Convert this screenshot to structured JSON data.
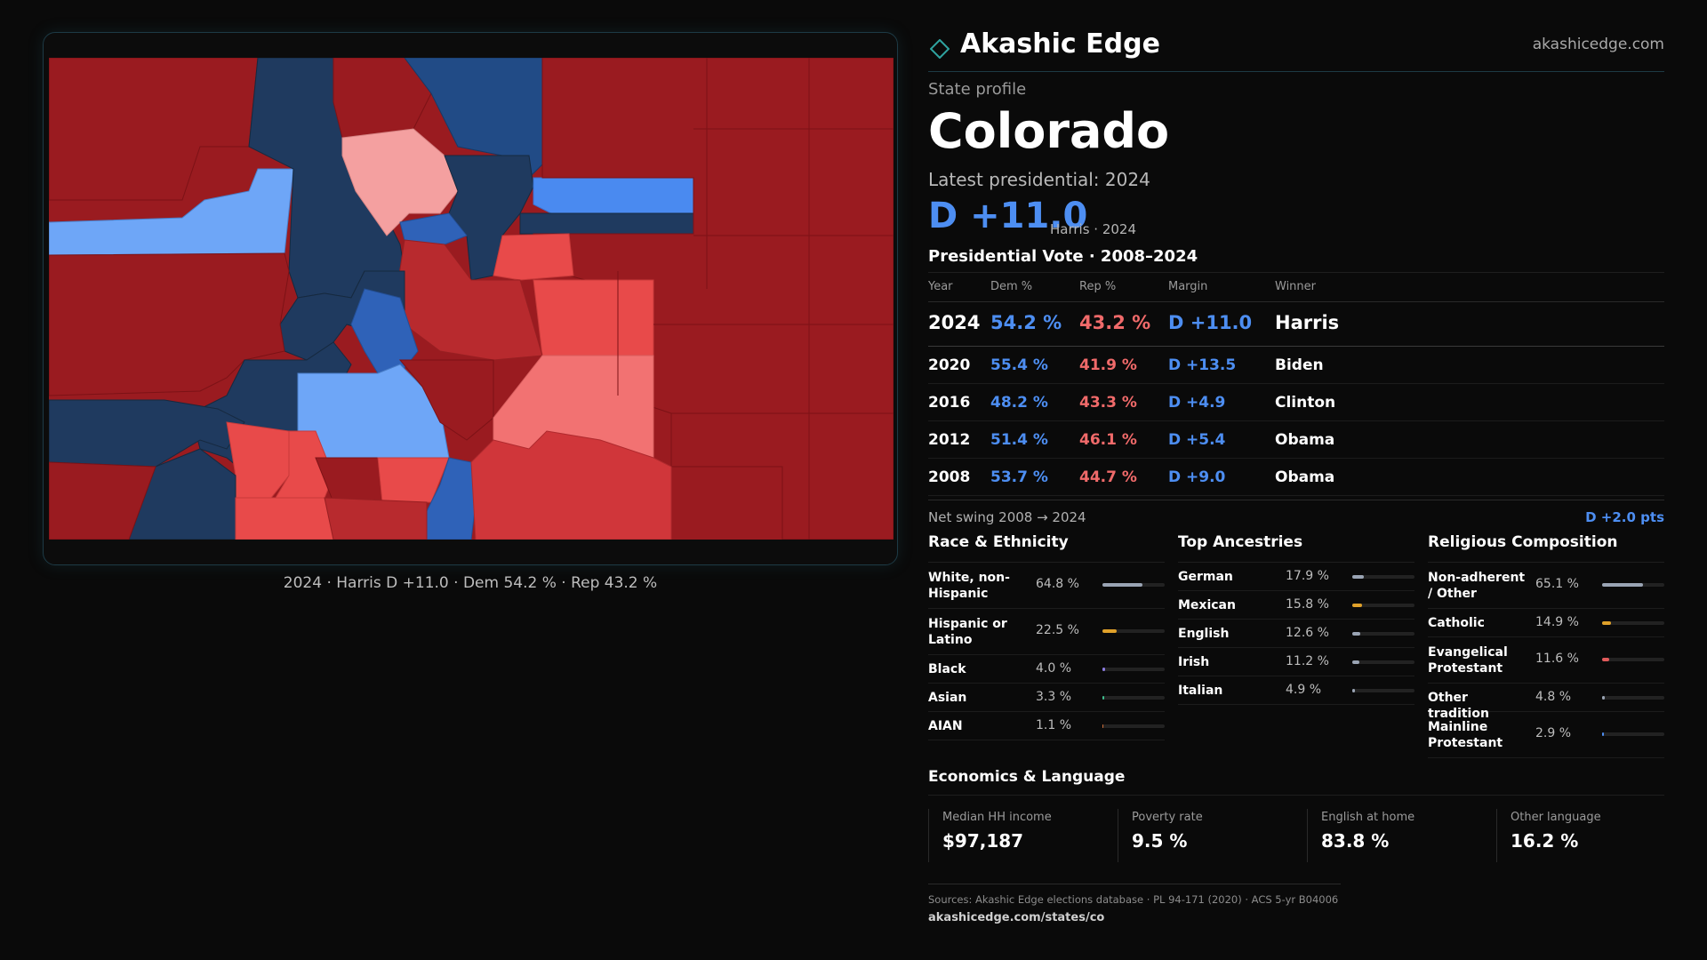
{
  "brand": {
    "name": "Akashic Edge",
    "url": "akashicedge.com"
  },
  "profile": {
    "label": "State profile",
    "state": "Colorado",
    "latest_label": "Latest presidential: 2024",
    "margin": "D +11.0",
    "margin_sub": "Harris · 2024"
  },
  "map": {
    "caption": "2024 · Harris D +11.0 · Dem 54.2 % · Rep 43.2 %",
    "colors": {
      "dem_dark": "#1f3a5f",
      "dem_mid": "#2f62b8",
      "dem_bright": "#4a8af0",
      "dem_light": "#6ea6f7",
      "rep_dark": "#9a1b20",
      "rep_mid": "#b82a2e",
      "rep_bright": "#e84a4a",
      "rep_light": "#f4a0a0"
    }
  },
  "vote": {
    "title": "Presidential Vote · 2008–2024",
    "headers": {
      "year": "Year",
      "dem": "Dem %",
      "rep": "Rep %",
      "margin": "Margin",
      "winner": "Winner"
    },
    "rows": [
      {
        "year": "2024",
        "dem": "54.2 %",
        "rep": "43.2 %",
        "margin": "D +11.0",
        "winner": "Harris"
      },
      {
        "year": "2020",
        "dem": "55.4 %",
        "rep": "41.9 %",
        "margin": "D +13.5",
        "winner": "Biden"
      },
      {
        "year": "2016",
        "dem": "48.2 %",
        "rep": "43.3 %",
        "margin": "D +4.9",
        "winner": "Clinton"
      },
      {
        "year": "2012",
        "dem": "51.4 %",
        "rep": "46.1 %",
        "margin": "D +5.4",
        "winner": "Obama"
      },
      {
        "year": "2008",
        "dem": "53.7 %",
        "rep": "44.7 %",
        "margin": "D +9.0",
        "winner": "Obama"
      }
    ],
    "swing_label": "Net swing 2008 → 2024",
    "swing_value": "D +2.0 pts"
  },
  "race": {
    "title": "Race & Ethnicity",
    "items": [
      {
        "label": "White, non-Hispanic",
        "value": "64.8 %",
        "share": 0.648,
        "color": "#9aa4b4"
      },
      {
        "label": "Hispanic or Latino",
        "value": "22.5 %",
        "share": 0.225,
        "color": "#e0a12a"
      },
      {
        "label": "Black",
        "value": "4.0 %",
        "share": 0.04,
        "color": "#8c7ce0"
      },
      {
        "label": "Asian",
        "value": "3.3 %",
        "share": 0.033,
        "color": "#3fbf8f"
      },
      {
        "label": "AIAN",
        "value": "1.1 %",
        "share": 0.011,
        "color": "#d0703a"
      }
    ]
  },
  "ancestry": {
    "title": "Top Ancestries",
    "items": [
      {
        "label": "German",
        "value": "17.9 %",
        "share": 0.179,
        "color": "#9aa4b4"
      },
      {
        "label": "Mexican",
        "value": "15.8 %",
        "share": 0.158,
        "color": "#e0a12a"
      },
      {
        "label": "English",
        "value": "12.6 %",
        "share": 0.126,
        "color": "#9aa4b4"
      },
      {
        "label": "Irish",
        "value": "11.2 %",
        "share": 0.112,
        "color": "#9aa4b4"
      },
      {
        "label": "Italian",
        "value": "4.9 %",
        "share": 0.049,
        "color": "#9aa4b4"
      }
    ]
  },
  "religion": {
    "title": "Religious Composition",
    "items": [
      {
        "label": "Non-adherent / Other",
        "value": "65.1 %",
        "share": 0.651,
        "color": "#9aa4b4"
      },
      {
        "label": "Catholic",
        "value": "14.9 %",
        "share": 0.149,
        "color": "#e0a12a"
      },
      {
        "label": "Evangelical Protestant",
        "value": "11.6 %",
        "share": 0.116,
        "color": "#e05a5a"
      },
      {
        "label": "Other tradition",
        "value": "4.8 %",
        "share": 0.048,
        "color": "#9aa4b4"
      },
      {
        "label": "Mainline Protestant",
        "value": "2.9 %",
        "share": 0.029,
        "color": "#4d8ef2"
      }
    ]
  },
  "econ": {
    "title": "Economics & Language",
    "cells": [
      {
        "label": "Median HH income",
        "value": "$97,187"
      },
      {
        "label": "Poverty rate",
        "value": "9.5 %"
      },
      {
        "label": "English at home",
        "value": "83.8 %"
      },
      {
        "label": "Other language",
        "value": "16.2 %"
      }
    ]
  },
  "footer": {
    "sources": "Sources: Akashic Edge elections database · PL 94-171 (2020) · ACS 5-yr B04006",
    "url": "akashicedge.com/states/co"
  }
}
